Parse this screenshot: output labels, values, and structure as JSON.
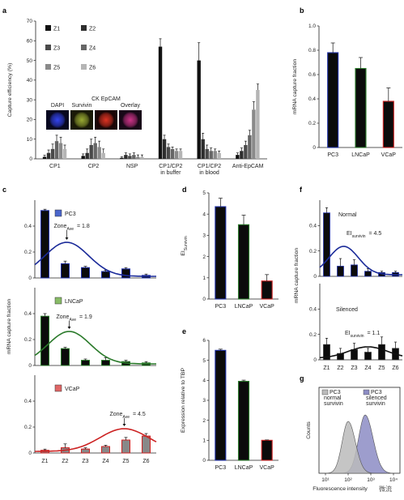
{
  "watermark": "微流",
  "panels": {
    "a": {
      "label": "a"
    },
    "b": {
      "label": "b"
    },
    "c": {
      "label": "c"
    },
    "d": {
      "label": "d"
    },
    "e": {
      "label": "e"
    },
    "f": {
      "label": "f"
    },
    "g": {
      "label": "g"
    }
  },
  "chart_data": [
    {
      "id": "a",
      "type": "bar",
      "ylabel": "Capture efficiency (%)",
      "ylim": [
        0,
        70
      ],
      "yticks": [
        0,
        10,
        20,
        30,
        40,
        50,
        60,
        70
      ],
      "categories": [
        "CP1",
        "CP2",
        "NSP",
        "CP1/CP2 in buffer",
        "CP1/CP2 in blood",
        "Anti-EpCAM"
      ],
      "category_lines": [
        [
          "CP1"
        ],
        [
          "CP2"
        ],
        [
          "NSP"
        ],
        [
          "CP1/CP2",
          "in buffer"
        ],
        [
          "CP1/CP2",
          "in blood"
        ],
        [
          "Anti-EpCAM"
        ]
      ],
      "series": [
        {
          "name": "Z1",
          "color": "#111111",
          "values": [
            1,
            1.5,
            0.5,
            57,
            50,
            2
          ],
          "errors": [
            0.8,
            1,
            0.5,
            4,
            9,
            1
          ]
        },
        {
          "name": "Z2",
          "color": "#2e2e2e",
          "values": [
            3,
            3,
            2,
            10,
            10,
            4
          ],
          "errors": [
            1.5,
            2,
            1,
            2,
            3,
            1.5
          ]
        },
        {
          "name": "Z3",
          "color": "#4a4a4a",
          "values": [
            5,
            7,
            1.5,
            6,
            5,
            7
          ],
          "errors": [
            2.5,
            3,
            1,
            1.5,
            2,
            2
          ]
        },
        {
          "name": "Z4",
          "color": "#666666",
          "values": [
            9,
            8,
            2,
            5,
            4,
            12
          ],
          "errors": [
            3,
            3,
            1,
            1,
            1.5,
            2.5
          ]
        },
        {
          "name": "Z5",
          "color": "#8a8a8a",
          "values": [
            8,
            6,
            1,
            4,
            4,
            25
          ],
          "errors": [
            3,
            3,
            1,
            1,
            1,
            4
          ]
        },
        {
          "name": "Z6",
          "color": "#b5b5b5",
          "values": [
            5,
            3,
            1,
            4,
            3,
            35
          ],
          "errors": [
            2,
            2,
            1,
            1,
            1,
            3
          ]
        }
      ],
      "inset_labels": [
        "DAPI",
        "Survivin",
        "CK EpCAM",
        "Overlay"
      ]
    },
    {
      "id": "b",
      "type": "bar",
      "ylabel": "mRNA capture fraction",
      "ylim": [
        0,
        1.0
      ],
      "yticks": [
        0,
        0.2,
        0.4,
        0.6,
        0.8,
        1.0
      ],
      "categories": [
        "PC3",
        "LNCaP",
        "VCaP"
      ],
      "values": [
        0.78,
        0.65,
        0.38
      ],
      "errors": [
        0.08,
        0.09,
        0.11
      ],
      "edge_colors": [
        "#2233aa",
        "#2a7a2a",
        "#cc2222"
      ]
    },
    {
      "id": "c",
      "type": "bar",
      "ylabel": "mRNA capture fraction",
      "categories": [
        "Z1",
        "Z2",
        "Z3",
        "Z4",
        "Z5",
        "Z6"
      ],
      "subplots": [
        {
          "name": "PC3",
          "legend_color": "#4a66cc",
          "edge": "#2233aa",
          "curve": "#1a2a99",
          "values": [
            0.52,
            0.11,
            0.08,
            0.05,
            0.07,
            0.02
          ],
          "errors": [
            0.01,
            0.02,
            0.01,
            0.01,
            0.01,
            0.01
          ],
          "ylim": [
            0,
            0.6
          ],
          "yticks": [
            0,
            0.2,
            0.4
          ],
          "zone_label": "Zone",
          "zone_sub": "Ave",
          "zone_value": "= 1.8"
        },
        {
          "name": "LNCaP",
          "legend_color": "#88bb66",
          "edge": "#2a7a2a",
          "curve": "#2a7a2a",
          "values": [
            0.38,
            0.13,
            0.04,
            0.04,
            0.03,
            0.02
          ],
          "errors": [
            0.02,
            0.01,
            0.01,
            0.02,
            0.01,
            0.01
          ],
          "ylim": [
            0,
            0.6
          ],
          "yticks": [
            0,
            0.2,
            0.4
          ],
          "zone_label": "Zone",
          "zone_sub": "Ave",
          "zone_value": "= 1.9"
        },
        {
          "name": "VCaP",
          "legend_color": "#e06666",
          "edge": "#cc2222",
          "curve": "#cc2222",
          "values": [
            0.02,
            0.04,
            0.03,
            0.05,
            0.1,
            0.13
          ],
          "errors": [
            0.01,
            0.03,
            0.01,
            0.01,
            0.02,
            0.02
          ],
          "ylim": [
            0,
            0.6
          ],
          "yticks": [
            0,
            0.2,
            0.4
          ],
          "zone_label": "Zone",
          "zone_sub": "Ave",
          "zone_value": "= 4.5"
        }
      ]
    },
    {
      "id": "d",
      "type": "bar",
      "ylabel": "EI",
      "ylabel_sub": "Survivin",
      "ylim": [
        0,
        5
      ],
      "yticks": [
        0,
        1,
        2,
        3,
        4,
        5
      ],
      "categories": [
        "PC3",
        "LNCaP",
        "VCaP"
      ],
      "values": [
        4.35,
        3.5,
        0.85
      ],
      "errors": [
        0.4,
        0.45,
        0.3
      ],
      "edge_colors": [
        "#2233aa",
        "#2a7a2a",
        "#cc2222"
      ]
    },
    {
      "id": "e",
      "type": "bar",
      "ylabel": "Expression relative to TBP",
      "ylim": [
        0,
        6
      ],
      "yticks": [
        0,
        1,
        2,
        3,
        4,
        5,
        6
      ],
      "categories": [
        "PC3",
        "LNCaP",
        "VCaP"
      ],
      "values": [
        5.5,
        3.95,
        1.0
      ],
      "errors": [
        0.06,
        0.06,
        0.02
      ],
      "edge_colors": [
        "#2233aa",
        "#2a7a2a",
        "#cc2222"
      ]
    },
    {
      "id": "f",
      "type": "bar",
      "ylabel": "mRNA capture fraction",
      "categories": [
        "Z1",
        "Z2",
        "Z3",
        "Z4",
        "Z5",
        "Z6"
      ],
      "subplots": [
        {
          "name": "Normal",
          "edge": "#2233aa",
          "curve": "#1a2a99",
          "values": [
            0.5,
            0.08,
            0.09,
            0.04,
            0.03,
            0.03
          ],
          "errors": [
            0.04,
            0.06,
            0.04,
            0.02,
            0.01,
            0.01
          ],
          "ylim": [
            0,
            0.6
          ],
          "yticks": [
            0,
            0.2,
            0.4
          ],
          "ei_label": "EI",
          "ei_sub": "survivin",
          "ei_value": "= 4.5"
        },
        {
          "name": "Silenced",
          "edge": "#333333",
          "curve": "#111111",
          "values": [
            0.12,
            0.05,
            0.08,
            0.06,
            0.12,
            0.09
          ],
          "errors": [
            0.05,
            0.04,
            0.05,
            0.03,
            0.06,
            0.05
          ],
          "ylim": [
            0,
            0.6
          ],
          "yticks": [
            0,
            0.2,
            0.4
          ],
          "ei_label": "EI",
          "ei_sub": "survivin",
          "ei_value": "= 1.1"
        }
      ]
    },
    {
      "id": "g",
      "type": "area",
      "ylabel": "Counts",
      "xlabel": "Fluorescence intensity",
      "xticks": [
        "10¹",
        "10²",
        "10³",
        "10⁴"
      ],
      "series": [
        {
          "name": "PC3 normal survivin",
          "line1": "PC3",
          "line2": "normal",
          "line3": "survivin",
          "color": "#bbbbbb"
        },
        {
          "name": "PC3 silenced survivin",
          "line1": "PC3",
          "line2": "silenced",
          "line3": "survivin",
          "color": "#8c8cc4"
        }
      ]
    }
  ]
}
